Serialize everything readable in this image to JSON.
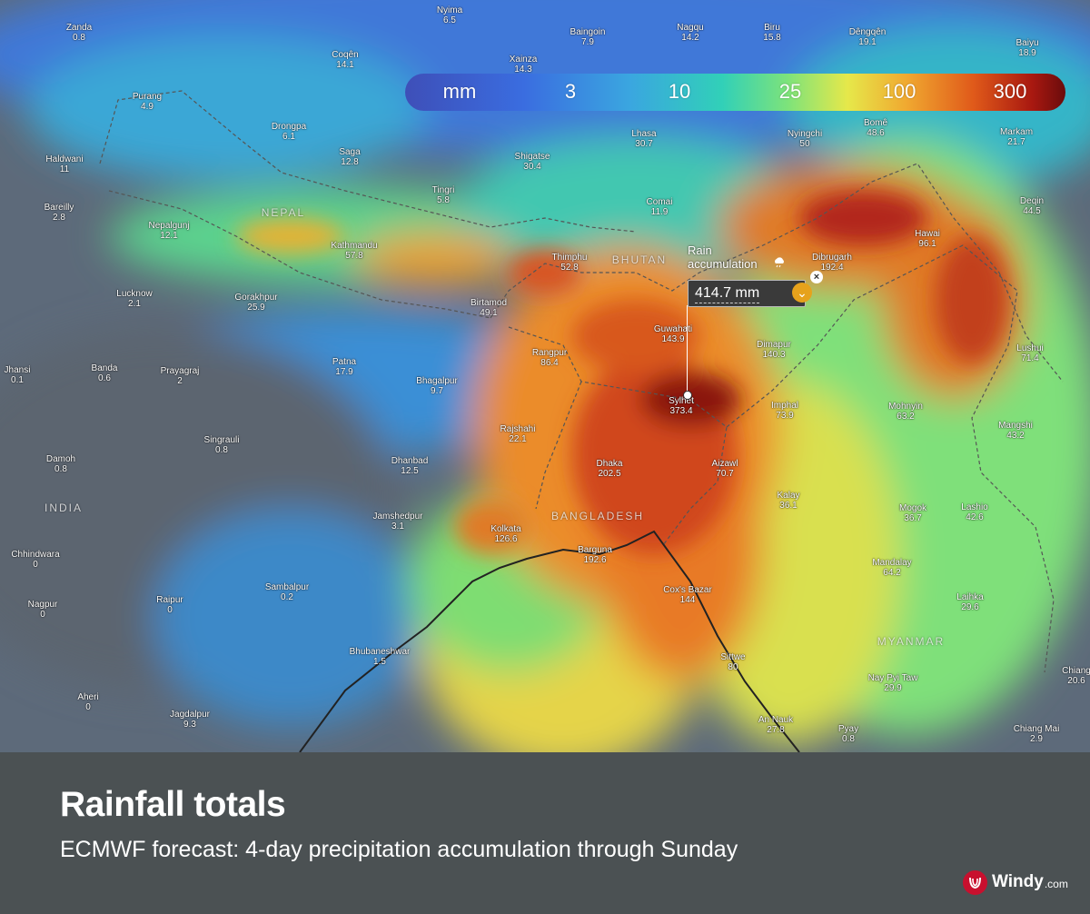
{
  "legend": {
    "unit": "mm",
    "stops": [
      "3",
      "10",
      "25",
      "100",
      "300"
    ]
  },
  "popup": {
    "title": "Rain accumulation",
    "value": "414.7 mm"
  },
  "countries": [
    "NEPAL",
    "BHUTAN",
    "INDIA",
    "BANGLADESH",
    "MYANMAR"
  ],
  "places": [
    {
      "name": "Zanda",
      "value": "0.8"
    },
    {
      "name": "Nyima",
      "value": "6.5"
    },
    {
      "name": "Baingoin",
      "value": "7.9"
    },
    {
      "name": "Nagqu",
      "value": "14.2"
    },
    {
      "name": "Biru",
      "value": "15.8"
    },
    {
      "name": "Dêngqên",
      "value": "19.1"
    },
    {
      "name": "Baiyu",
      "value": "18.9"
    },
    {
      "name": "Coqên",
      "value": "14.1"
    },
    {
      "name": "Xainza",
      "value": "14.3"
    },
    {
      "name": "Purang",
      "value": "4.9"
    },
    {
      "name": "Drongpa",
      "value": "6.1"
    },
    {
      "name": "Lhasa",
      "value": "30.7"
    },
    {
      "name": "Nyingchi",
      "value": "50"
    },
    {
      "name": "Bomê",
      "value": "48.6"
    },
    {
      "name": "Markam",
      "value": "21.7"
    },
    {
      "name": "Haldwani",
      "value": "11"
    },
    {
      "name": "Saga",
      "value": "12.8"
    },
    {
      "name": "Shigatse",
      "value": "30.4"
    },
    {
      "name": "Tingri",
      "value": "5.8"
    },
    {
      "name": "Comai",
      "value": "11.9"
    },
    {
      "name": "Bareilly",
      "value": "2.8"
    },
    {
      "name": "Nepalgunj",
      "value": "12.1"
    },
    {
      "name": "Kathmandu",
      "value": "57.8"
    },
    {
      "name": "Thimphu",
      "value": "52.8"
    },
    {
      "name": "Dibrugarh",
      "value": "192.4"
    },
    {
      "name": "Hawai",
      "value": "96.1"
    },
    {
      "name": "Deqin",
      "value": "44.5"
    },
    {
      "name": "Lucknow",
      "value": "2.1"
    },
    {
      "name": "Gorakhpur",
      "value": "25.9"
    },
    {
      "name": "Birtamod",
      "value": "49.1"
    },
    {
      "name": "Guwahati",
      "value": "143.9"
    },
    {
      "name": "Rangpur",
      "value": "86.4"
    },
    {
      "name": "Dimapur",
      "value": "140.3"
    },
    {
      "name": "Lushui",
      "value": "71.4"
    },
    {
      "name": "Jhansi",
      "value": "0.1"
    },
    {
      "name": "Banda",
      "value": "0.6"
    },
    {
      "name": "Prayagraj",
      "value": "2"
    },
    {
      "name": "Patna",
      "value": "17.9"
    },
    {
      "name": "Bhagalpur",
      "value": "9.7"
    },
    {
      "name": "Sylhet",
      "value": "373.4"
    },
    {
      "name": "Imphal",
      "value": "73.9"
    },
    {
      "name": "Mohnyin",
      "value": "63.2"
    },
    {
      "name": "Mangshi",
      "value": "43.2"
    },
    {
      "name": "Rajshahi",
      "value": "22.1"
    },
    {
      "name": "Singrauli",
      "value": "0.8"
    },
    {
      "name": "Damoh",
      "value": "0.8"
    },
    {
      "name": "Dhanbad",
      "value": "12.5"
    },
    {
      "name": "Dhaka",
      "value": "202.5"
    },
    {
      "name": "Aizawl",
      "value": "70.7"
    },
    {
      "name": "Kalay",
      "value": "36.1"
    },
    {
      "name": "Mogok",
      "value": "36.7"
    },
    {
      "name": "Lashio",
      "value": "42.6"
    },
    {
      "name": "Jamshedpur",
      "value": "3.1"
    },
    {
      "name": "Kolkata",
      "value": "126.6"
    },
    {
      "name": "Barguna",
      "value": "192.6"
    },
    {
      "name": "Chhindwara",
      "value": "0"
    },
    {
      "name": "Sambalpur",
      "value": "0.2"
    },
    {
      "name": "Mandalay",
      "value": "64.2"
    },
    {
      "name": "Nagpur",
      "value": "0"
    },
    {
      "name": "Raipur",
      "value": "0"
    },
    {
      "name": "Cox's Bazar",
      "value": "144"
    },
    {
      "name": "Laihka",
      "value": "29.6"
    },
    {
      "name": "Bhubaneshwar",
      "value": "1.5"
    },
    {
      "name": "Sittwe",
      "value": "80"
    },
    {
      "name": "Nay Pyi Taw",
      "value": "29.9"
    },
    {
      "name": "Aheri",
      "value": "0"
    },
    {
      "name": "Jagdalpur",
      "value": "9.3"
    },
    {
      "name": "An Nauk",
      "value": "27.8"
    },
    {
      "name": "Pyay",
      "value": "0.8"
    },
    {
      "name": "Chiang Mai",
      "value": "2.9"
    },
    {
      "name": "Chiang",
      "value": "20.6"
    }
  ],
  "footer": {
    "title": "Rainfall totals",
    "subtitle": "ECMWF forecast: 4-day precipitation accumulation through Sunday",
    "brand": "Windy",
    "brand_tld": ".com"
  },
  "colors": {
    "footer_bg": "#4b5153",
    "brand_red": "#c8102e",
    "popup_toggle": "#e6a21c"
  },
  "icons": [
    "rain-cloud-icon",
    "close-icon",
    "chevron-down-icon",
    "windy-logo-icon"
  ]
}
